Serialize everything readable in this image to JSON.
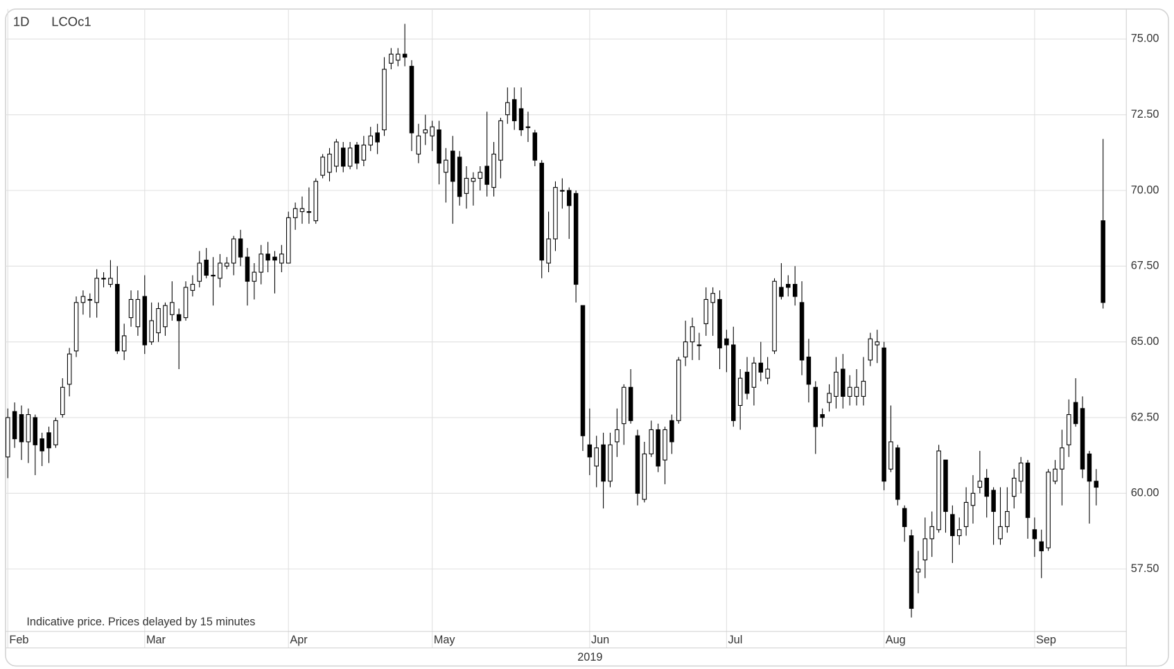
{
  "chart_data": {
    "type": "candlestick",
    "interval": "1D",
    "title": "LCOc1",
    "note": "Indicative price. Prices delayed by 15 minutes",
    "x_axis_label": "2019",
    "up_color": "#ffffff",
    "down_color": "#000000",
    "grid": true,
    "xlim": [
      -0.33,
      163.4
    ],
    "xticks": [
      {
        "value": 0,
        "label": "Feb"
      },
      {
        "value": 20,
        "label": "Mar"
      },
      {
        "value": 41,
        "label": "Apr"
      },
      {
        "value": 62,
        "label": "May"
      },
      {
        "value": 85,
        "label": "Jun"
      },
      {
        "value": 105,
        "label": "Jul"
      },
      {
        "value": 128,
        "label": "Aug"
      },
      {
        "value": 150,
        "label": "Sep"
      }
    ],
    "ylim": [
      55.44,
      75.99
    ],
    "yticks": [
      {
        "value": 57.5,
        "label": "57.50"
      },
      {
        "value": 60,
        "label": "60.00"
      },
      {
        "value": 62.5,
        "label": "62.50"
      },
      {
        "value": 65,
        "label": "65.00"
      },
      {
        "value": 67.5,
        "label": "67.50"
      },
      {
        "value": 70,
        "label": "70.00"
      },
      {
        "value": 72.5,
        "label": "72.50"
      },
      {
        "value": 75,
        "label": "75.00"
      }
    ],
    "open": [
      61.2,
      62.7,
      62.6,
      61.7,
      62.5,
      61.8,
      62,
      61.6,
      62.6,
      63.6,
      64.7,
      66.3,
      66.4,
      66.3,
      67.1,
      66.9,
      66.9,
      64.7,
      65.8,
      65.5,
      66.5,
      65,
      65.3,
      65.5,
      65.9,
      65.9,
      65.8,
      66.7,
      67,
      67.7,
      67.2,
      67.1,
      67.5,
      67.6,
      68.4,
      67.8,
      67,
      67.3,
      67.9,
      67.8,
      67.6,
      67.6,
      69.1,
      69.3,
      69.3,
      69,
      70.5,
      70.6,
      70.8,
      71.4,
      70.8,
      71.5,
      71,
      71.5,
      71.9,
      72,
      74.2,
      74.3,
      74.5,
      74.1,
      71.2,
      71.9,
      71.8,
      72,
      70.6,
      71.3,
      71.1,
      69.9,
      70.3,
      70.4,
      70.8,
      70.1,
      71,
      72.5,
      73,
      72.7,
      72.1,
      71.9,
      70.9,
      67.6,
      68.4,
      70,
      70,
      69.9,
      66.2,
      61.6,
      60.9,
      61.6,
      60.4,
      61.7,
      62.3,
      63.5,
      61.9,
      59.8,
      61.3,
      62.1,
      61.1,
      62.4,
      62.4,
      64.5,
      65,
      64.9,
      65.6,
      66.3,
      66.4,
      65.1,
      64.9,
      62.9,
      64,
      63.5,
      64.3,
      63.8,
      64.7,
      66.8,
      66.9,
      66.9,
      66.3,
      64.5,
      63.5,
      62.6,
      63,
      63.2,
      64.1,
      63.2,
      63.2,
      63.2,
      64.4,
      64.9,
      64.8,
      60.8,
      61.5,
      59.5,
      58.6,
      57.4,
      57.8,
      58.5,
      58.8,
      61.1,
      59.3,
      58.6,
      58.9,
      59.6,
      60.2,
      60.5,
      60.1,
      58.5,
      58.9,
      59.9,
      60.4,
      61,
      58.8,
      58.4,
      58.2,
      60.4,
      60.8,
      61.6,
      63,
      62.8,
      61.3,
      60.4,
      69
    ],
    "high": [
      62.8,
      63,
      62.9,
      62.8,
      62.6,
      62,
      62.2,
      62.5,
      63.8,
      64.8,
      66.5,
      66.7,
      66.6,
      67.4,
      67.3,
      67.7,
      67.5,
      65.6,
      66.7,
      66.7,
      67.2,
      66.3,
      66.3,
      66.3,
      67,
      66.1,
      67,
      67.2,
      68,
      68.1,
      67.8,
      67.9,
      67.8,
      68.5,
      68.7,
      68.1,
      67.6,
      68.2,
      68.3,
      68,
      68.2,
      69.3,
      69.6,
      69.8,
      70.1,
      70.4,
      71.2,
      71.4,
      71.7,
      71.6,
      71.6,
      71.6,
      71.8,
      72.1,
      72.2,
      74.4,
      74.7,
      74.7,
      75.5,
      74.3,
      72.2,
      72.5,
      72.3,
      72.3,
      71.4,
      71.8,
      71.3,
      70.8,
      70.6,
      70.8,
      72.6,
      71.6,
      72.4,
      73.4,
      73.4,
      73.4,
      72.6,
      72,
      71,
      69.3,
      70.3,
      70.4,
      70.1,
      70,
      66.2,
      62.8,
      61.9,
      62,
      62,
      62.8,
      63.6,
      64.1,
      62.1,
      61.7,
      62.4,
      62.3,
      62.2,
      62.6,
      64.5,
      65.7,
      65.8,
      65.3,
      66.8,
      66.8,
      66.7,
      65.4,
      65.5,
      64.1,
      64.5,
      64.5,
      65,
      64.5,
      67.1,
      67.6,
      67.2,
      67.5,
      67,
      65.1,
      63.7,
      62.8,
      63.6,
      64.5,
      64.6,
      63.9,
      64.1,
      64.5,
      65.3,
      65.4,
      65,
      62.9,
      61.6,
      59.6,
      58.8,
      58.1,
      59.2,
      59.4,
      61.6,
      61.1,
      59.6,
      59.2,
      60.2,
      60.6,
      61.4,
      60.8,
      60.2,
      60.2,
      60.2,
      60.8,
      61.2,
      61.1,
      59.2,
      58.8,
      60.8,
      61.1,
      62.1,
      63.1,
      63.8,
      63.2,
      61.4,
      60.8,
      71.7
    ],
    "low": [
      60.5,
      61.5,
      61.1,
      61,
      60.6,
      60.9,
      61,
      61.5,
      62.5,
      63.2,
      64.5,
      65.9,
      65.8,
      65.8,
      66.8,
      66.8,
      64.6,
      64.4,
      65.5,
      65.2,
      64.6,
      64.9,
      65,
      65.2,
      65.7,
      64.1,
      65.7,
      66.5,
      66.8,
      67.1,
      66.2,
      66.8,
      67.4,
      67.2,
      67.5,
      66.2,
      66.4,
      66.9,
      67.3,
      66.6,
      67.3,
      67.6,
      68.7,
      68.9,
      68.9,
      68.9,
      70.4,
      70.3,
      70.6,
      70.6,
      70.7,
      70.7,
      70.8,
      71.3,
      71.2,
      71.8,
      74,
      74.1,
      74.1,
      71.3,
      70.9,
      71.5,
      71.3,
      70.2,
      69.6,
      68.9,
      69.5,
      69.4,
      69.5,
      70,
      69.8,
      69.8,
      70.4,
      72.2,
      72,
      71.8,
      71.6,
      70.8,
      67.1,
      67.3,
      68,
      69.4,
      68.4,
      66.3,
      61.4,
      60.6,
      60.2,
      59.5,
      60.2,
      61.2,
      61.6,
      62.3,
      59.6,
      59.7,
      61.2,
      60.7,
      60.3,
      61.3,
      62.3,
      64.2,
      64.4,
      64.4,
      65.2,
      65.2,
      64.1,
      64,
      62.2,
      62.1,
      63.1,
      62.9,
      63.7,
      63.6,
      64.6,
      66.4,
      66.5,
      66.2,
      63.9,
      63,
      61.3,
      62.2,
      62.7,
      62.8,
      62.8,
      62.9,
      62.9,
      62.9,
      64.2,
      64.3,
      60.1,
      60.7,
      59.6,
      58.4,
      55.9,
      56.7,
      57.2,
      57.9,
      58.7,
      58.7,
      57.7,
      58.3,
      58.6,
      59,
      60,
      59.2,
      58.3,
      58.3,
      58.7,
      59.5,
      60,
      58.5,
      57.9,
      57.2,
      58.1,
      60.3,
      59.6,
      61.2,
      62.2,
      60.5,
      59,
      59.6,
      66.1
    ],
    "close": [
      62.5,
      61.8,
      61.7,
      62.6,
      61.6,
      61.4,
      61.5,
      62.4,
      63.5,
      64.6,
      66.3,
      66.5,
      66.4,
      67.1,
      67.1,
      67.1,
      64.7,
      65.2,
      66.4,
      66.4,
      64.9,
      65.7,
      66.1,
      66.2,
      66.3,
      65.7,
      66.8,
      66.9,
      67.6,
      67.2,
      67.2,
      67.6,
      67.6,
      68.4,
      67.8,
      67,
      67.3,
      67.9,
      67.7,
      67.7,
      67.9,
      69.1,
      69.4,
      69.4,
      69.3,
      70.3,
      71.1,
      71.2,
      71.6,
      70.8,
      71.4,
      70.9,
      71.5,
      71.8,
      71.6,
      74,
      74.5,
      74.5,
      74.4,
      71.9,
      71.8,
      72,
      72.1,
      70.9,
      71,
      70.3,
      69.8,
      70.4,
      70.4,
      70.6,
      70.2,
      71.2,
      72.3,
      72.9,
      72.3,
      72,
      72.1,
      71,
      67.7,
      68.4,
      70.1,
      70,
      69.5,
      66.9,
      61.9,
      61.2,
      61.5,
      60.4,
      61.6,
      62.1,
      63.5,
      62.4,
      60,
      61.3,
      62.1,
      60.9,
      62.1,
      61.7,
      64.4,
      65,
      65.5,
      64.9,
      66.4,
      66.6,
      64.8,
      64.9,
      62.4,
      63.8,
      63.3,
      64.3,
      64,
      64.1,
      67,
      66.5,
      66.8,
      66.5,
      64.4,
      63.6,
      62.2,
      62.5,
      63.3,
      64,
      63.2,
      63.5,
      63.5,
      63.7,
      65.1,
      65,
      60.4,
      61.7,
      59.8,
      58.9,
      56.2,
      57.5,
      58.5,
      58.9,
      61.4,
      59.4,
      58.6,
      58.8,
      59.7,
      60,
      60.4,
      59.9,
      59.4,
      58.9,
      59.4,
      60.5,
      61,
      59.2,
      58.5,
      58.1,
      60.7,
      60.8,
      61.5,
      62.6,
      62.3,
      60.8,
      60.4,
      60.2,
      66.3
    ]
  }
}
